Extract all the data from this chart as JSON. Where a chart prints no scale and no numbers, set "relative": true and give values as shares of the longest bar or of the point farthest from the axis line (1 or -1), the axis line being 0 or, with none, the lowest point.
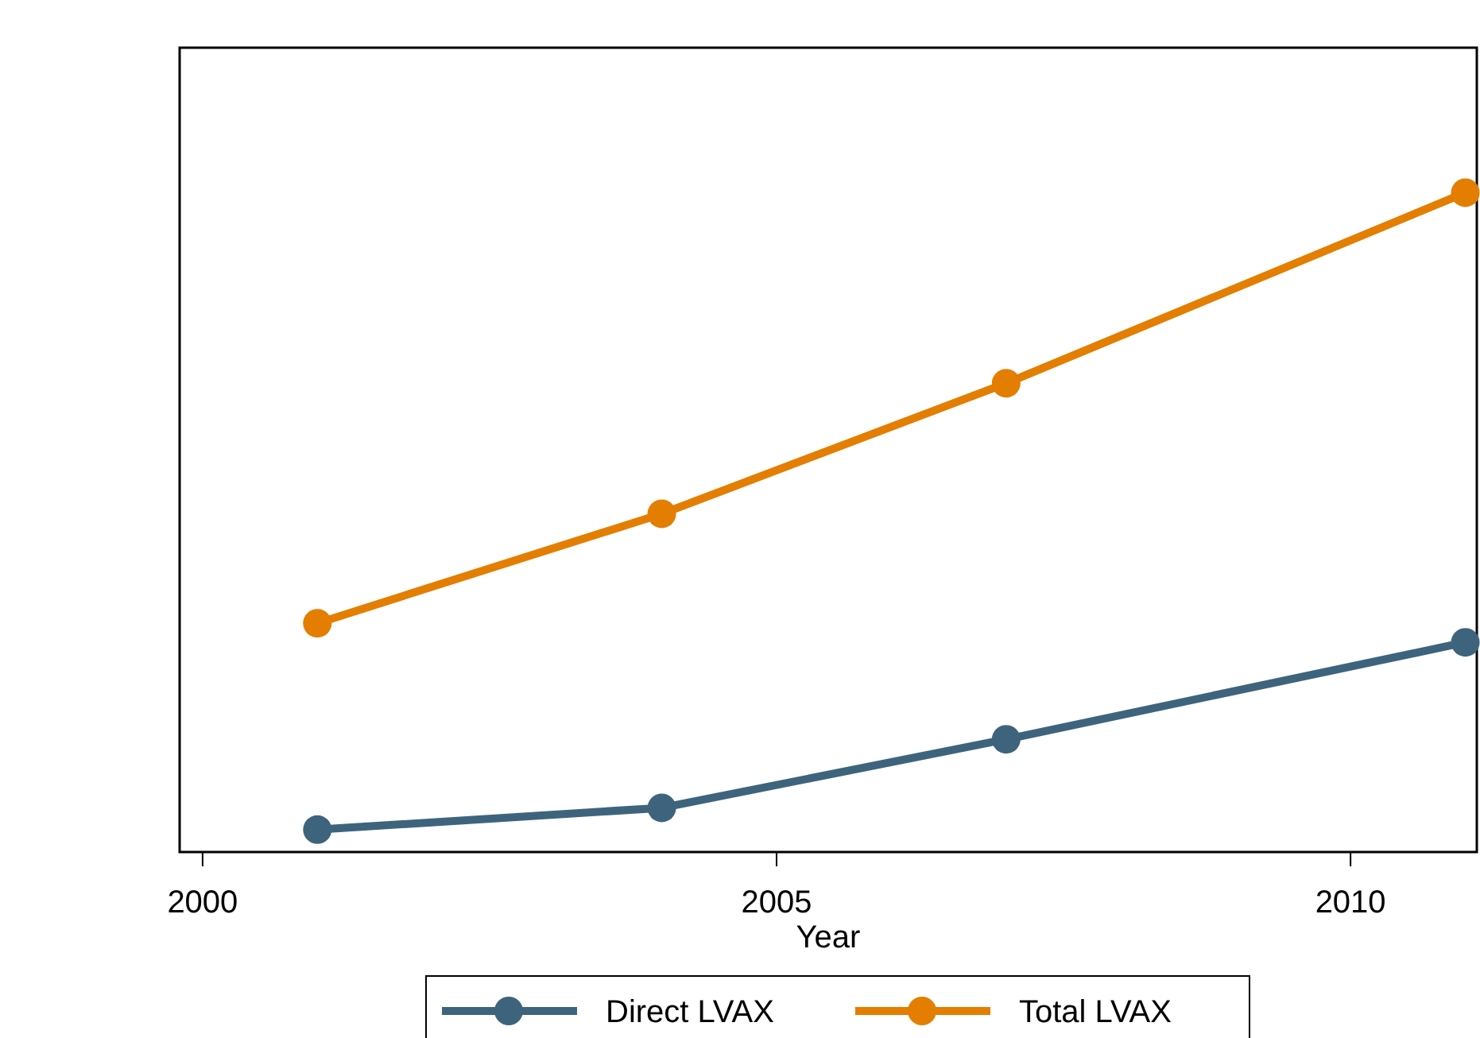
{
  "chart_data": {
    "type": "line",
    "relative": true,
    "xlabel": "Year",
    "x": [
      2001,
      2004,
      2007,
      2011
    ],
    "xlim": [
      1999.8,
      2011.1
    ],
    "xticks": [
      2000,
      2005,
      2010
    ],
    "marker": "circle",
    "line_style": "solid",
    "legend": "bottom",
    "series": [
      {
        "name": "Direct LVAX",
        "color": "#3e647d",
        "values": [
          0.034,
          0.067,
          0.171,
          0.318
        ]
      },
      {
        "name": "Total LVAX",
        "color": "#e37e00",
        "values": [
          0.347,
          0.513,
          0.711,
          1
        ]
      }
    ]
  }
}
